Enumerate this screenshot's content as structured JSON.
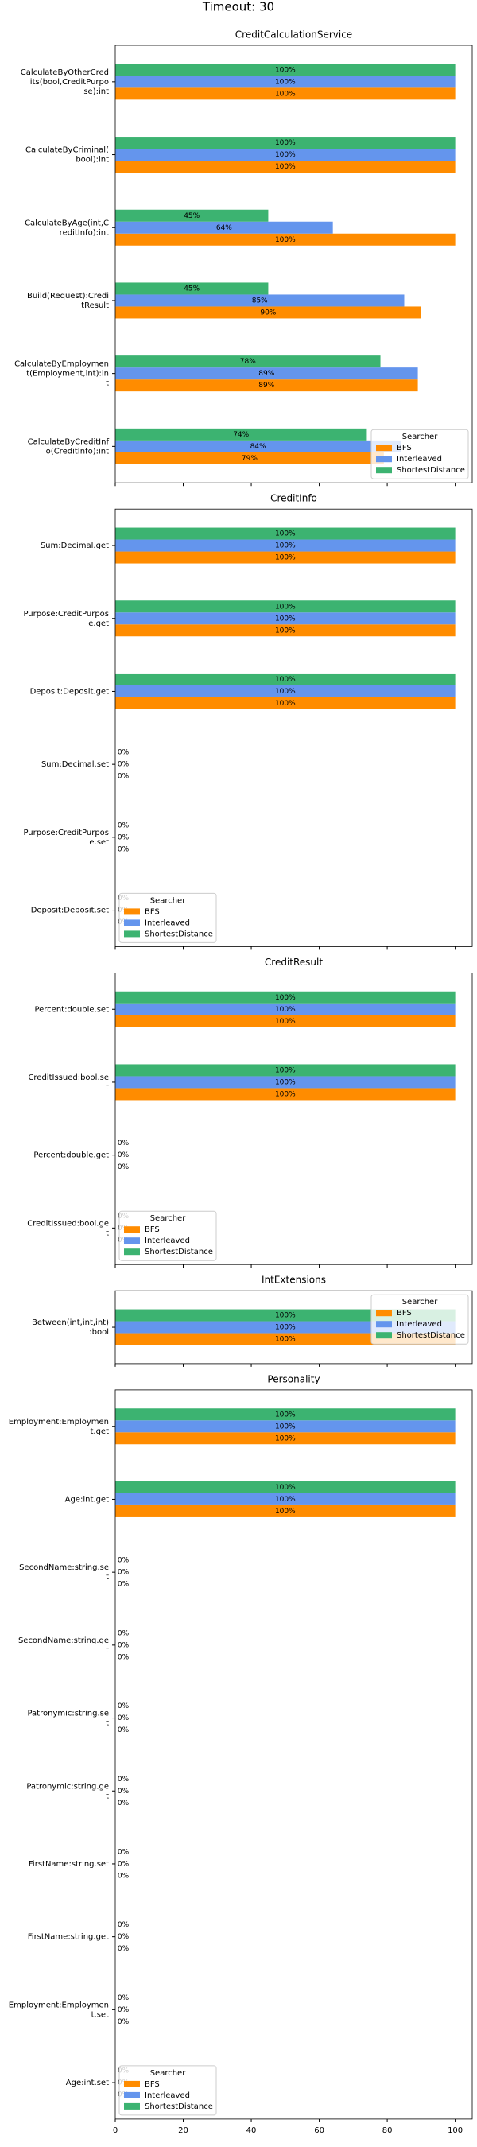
{
  "title": "Timeout: 30",
  "chart_data": [
    {
      "type": "barh",
      "title": "CreditCalculationService",
      "categories": [
        "CalculateByOtherCredits(bool,CreditPurpose):int",
        "CalculateByCriminal(bool):int",
        "CalculateByAge(int,CreditInfo):int",
        "Build(Request):CreditResult",
        "CalculateByEmployment(Employment,int):int",
        "CalculateByCreditInfo(CreditInfo):int"
      ],
      "series": [
        {
          "name": "BFS",
          "color": "#ff8c00",
          "values": [
            100,
            100,
            100,
            90,
            89,
            79
          ],
          "value_labels": [
            "100%",
            "100%",
            "100%",
            "90%",
            "89%",
            "79%"
          ]
        },
        {
          "name": "Interleaved",
          "color": "#6495ed",
          "values": [
            100,
            100,
            64,
            85,
            89,
            84
          ],
          "value_labels": [
            "100%",
            "100%",
            "64%",
            "85%",
            "89%",
            "84%"
          ]
        },
        {
          "name": "ShortestDistance",
          "color": "#3cb371",
          "values": [
            100,
            100,
            45,
            45,
            78,
            74
          ],
          "value_labels": [
            "100%",
            "100%",
            "45%",
            "45%",
            "78%",
            "74%"
          ]
        }
      ],
      "xlim": [
        0,
        105
      ],
      "xticks": [
        0,
        20,
        40,
        60,
        80,
        100
      ],
      "legend_title": "Searcher",
      "legend": "lower right"
    },
    {
      "type": "barh",
      "title": "CreditInfo",
      "categories": [
        "Sum:Decimal.get",
        "Purpose:CreditPurpose.get",
        "Deposit:Deposit.get",
        "Sum:Decimal.set",
        "Purpose:CreditPurpose.set",
        "Deposit:Deposit.set"
      ],
      "series": [
        {
          "name": "BFS",
          "color": "#ff8c00",
          "values": [
            100,
            100,
            100,
            0,
            0,
            0
          ],
          "value_labels": [
            "100%",
            "100%",
            "100%",
            "0%",
            "0%",
            "0%"
          ]
        },
        {
          "name": "Interleaved",
          "color": "#6495ed",
          "values": [
            100,
            100,
            100,
            0,
            0,
            0
          ],
          "value_labels": [
            "100%",
            "100%",
            "100%",
            "0%",
            "0%",
            "0%"
          ]
        },
        {
          "name": "ShortestDistance",
          "color": "#3cb371",
          "values": [
            100,
            100,
            100,
            0,
            0,
            0
          ],
          "value_labels": [
            "100%",
            "100%",
            "100%",
            "0%",
            "0%",
            "0%"
          ]
        }
      ],
      "xlim": [
        0,
        105
      ],
      "xticks": [
        0,
        20,
        40,
        60,
        80,
        100
      ],
      "legend_title": "Searcher",
      "legend": "lower left"
    },
    {
      "type": "barh",
      "title": "CreditResult",
      "categories": [
        "Percent:double.set",
        "CreditIssued:bool.set",
        "Percent:double.get",
        "CreditIssued:bool.get"
      ],
      "series": [
        {
          "name": "BFS",
          "color": "#ff8c00",
          "values": [
            100,
            100,
            0,
            0
          ],
          "value_labels": [
            "100%",
            "100%",
            "0%",
            "0%"
          ]
        },
        {
          "name": "Interleaved",
          "color": "#6495ed",
          "values": [
            100,
            100,
            0,
            0
          ],
          "value_labels": [
            "100%",
            "100%",
            "0%",
            "0%"
          ]
        },
        {
          "name": "ShortestDistance",
          "color": "#3cb371",
          "values": [
            100,
            100,
            0,
            0
          ],
          "value_labels": [
            "100%",
            "100%",
            "0%",
            "0%"
          ]
        }
      ],
      "xlim": [
        0,
        105
      ],
      "xticks": [
        0,
        20,
        40,
        60,
        80,
        100
      ],
      "legend_title": "Searcher",
      "legend": "lower left"
    },
    {
      "type": "barh",
      "title": "IntExtensions",
      "categories": [
        "Between(int,int,int):bool"
      ],
      "series": [
        {
          "name": "BFS",
          "color": "#ff8c00",
          "values": [
            100
          ],
          "value_labels": [
            "100%"
          ]
        },
        {
          "name": "Interleaved",
          "color": "#6495ed",
          "values": [
            100
          ],
          "value_labels": [
            "100%"
          ]
        },
        {
          "name": "ShortestDistance",
          "color": "#3cb371",
          "values": [
            100
          ],
          "value_labels": [
            "100%"
          ]
        }
      ],
      "xlim": [
        0,
        105
      ],
      "xticks": [
        0,
        20,
        40,
        60,
        80,
        100
      ],
      "legend_title": "Searcher",
      "legend": "upper right"
    },
    {
      "type": "barh",
      "title": "Personality",
      "categories": [
        "Employment:Employment.get",
        "Age:int.get",
        "SecondName:string.set",
        "SecondName:string.get",
        "Patronymic:string.set",
        "Patronymic:string.get",
        "FirstName:string.set",
        "FirstName:string.get",
        "Employment:Employment.set",
        "Age:int.set"
      ],
      "series": [
        {
          "name": "BFS",
          "color": "#ff8c00",
          "values": [
            100,
            100,
            0,
            0,
            0,
            0,
            0,
            0,
            0,
            0
          ],
          "value_labels": [
            "100%",
            "100%",
            "0%",
            "0%",
            "0%",
            "0%",
            "0%",
            "0%",
            "0%",
            "0%"
          ]
        },
        {
          "name": "Interleaved",
          "color": "#6495ed",
          "values": [
            100,
            100,
            0,
            0,
            0,
            0,
            0,
            0,
            0,
            0
          ],
          "value_labels": [
            "100%",
            "100%",
            "0%",
            "0%",
            "0%",
            "0%",
            "0%",
            "0%",
            "0%",
            "0%"
          ]
        },
        {
          "name": "ShortestDistance",
          "color": "#3cb371",
          "values": [
            100,
            100,
            0,
            0,
            0,
            0,
            0,
            0,
            0,
            0
          ],
          "value_labels": [
            "100%",
            "100%",
            "0%",
            "0%",
            "0%",
            "0%",
            "0%",
            "0%",
            "0%",
            "0%"
          ]
        }
      ],
      "xlim": [
        0,
        105
      ],
      "xticks": [
        0,
        20,
        40,
        60,
        80,
        100
      ],
      "legend_title": "Searcher",
      "legend": "lower left"
    }
  ]
}
